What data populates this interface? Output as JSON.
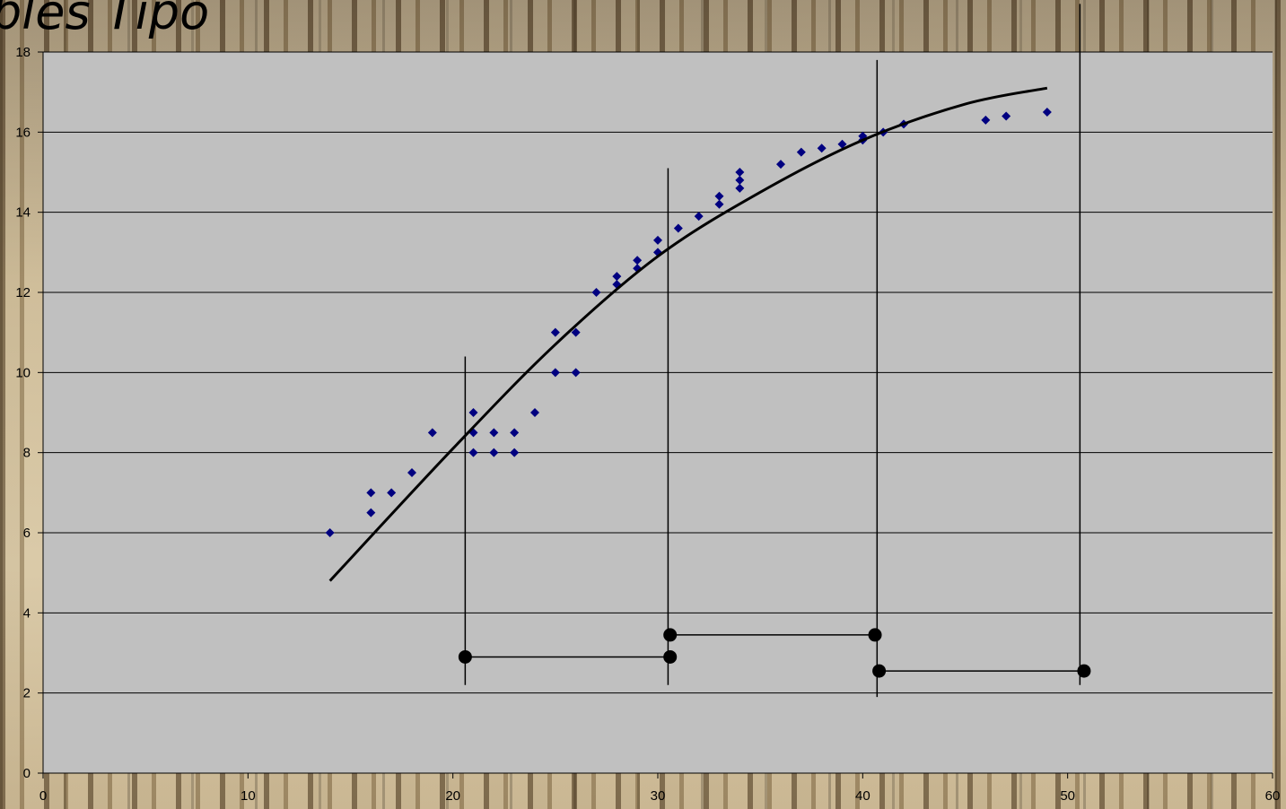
{
  "page": {
    "title": "bles Tipo"
  },
  "colors": {
    "plot_area": "#c0c0c0",
    "gridline": "#000000",
    "marker": "#000080",
    "trendline": "#000000",
    "interval": "#000000"
  },
  "chart_data": {
    "type": "scatter",
    "title": "",
    "xlabel": "",
    "ylabel": "",
    "xlim": [
      0,
      60
    ],
    "ylim": [
      0,
      18
    ],
    "x_ticks": [
      "0",
      "10",
      "20",
      "30",
      "40",
      "50",
      "60"
    ],
    "y_ticks": [
      "0",
      "2",
      "4",
      "6",
      "8",
      "10",
      "12",
      "14",
      "16",
      "18"
    ],
    "grid": "horizontal",
    "marker_shape": "diamond",
    "series": [
      {
        "points": [
          [
            14,
            6
          ],
          [
            16,
            7
          ],
          [
            16,
            6.5
          ],
          [
            17,
            7
          ],
          [
            18,
            7.5
          ],
          [
            19,
            8.5
          ],
          [
            21,
            9
          ],
          [
            21,
            8.5
          ],
          [
            21,
            8
          ],
          [
            22,
            8.5
          ],
          [
            22,
            8
          ],
          [
            23,
            8.5
          ],
          [
            23,
            8
          ],
          [
            24,
            9
          ],
          [
            25,
            11
          ],
          [
            25,
            10
          ],
          [
            26,
            11
          ],
          [
            26,
            10
          ],
          [
            27,
            12
          ],
          [
            28,
            12.4
          ],
          [
            28,
            12.2
          ],
          [
            29,
            12.8
          ],
          [
            29,
            12.6
          ],
          [
            30,
            13.3
          ],
          [
            30,
            13
          ],
          [
            31,
            13.6
          ],
          [
            32,
            13.9
          ],
          [
            33,
            14.4
          ],
          [
            33,
            14.2
          ],
          [
            34,
            15
          ],
          [
            34,
            14.8
          ],
          [
            34,
            14.6
          ],
          [
            36,
            15.2
          ],
          [
            37,
            15.5
          ],
          [
            38,
            15.6
          ],
          [
            39,
            15.7
          ],
          [
            40,
            15.9
          ],
          [
            40,
            15.8
          ],
          [
            41,
            16
          ],
          [
            42,
            16.2
          ],
          [
            46,
            16.3
          ],
          [
            47,
            16.4
          ],
          [
            49,
            16.5
          ]
        ]
      }
    ],
    "trendline": {
      "type": "polynomial",
      "x_range": [
        14,
        49
      ],
      "points": [
        [
          14,
          4.8
        ],
        [
          20,
          8.1
        ],
        [
          25,
          10.7
        ],
        [
          30,
          12.9
        ],
        [
          35,
          14.5
        ],
        [
          40,
          15.8
        ],
        [
          45,
          16.7
        ],
        [
          49,
          17.1
        ]
      ]
    },
    "class_limits": [
      {
        "x": 20.6,
        "y_from": 2.2,
        "y_to": 10.4
      },
      {
        "x": 30.5,
        "y_from": 2.2,
        "y_to": 15.1
      },
      {
        "x": 40.7,
        "y_from": 1.9,
        "y_to": 17.8
      },
      {
        "x": 50.6,
        "y_from": 2.2,
        "y_to": 19.2
      }
    ],
    "class_intervals": [
      {
        "x_from": 20.6,
        "x_to": 30.6,
        "y": 2.9
      },
      {
        "x_from": 30.6,
        "x_to": 40.6,
        "y": 3.45
      },
      {
        "x_from": 40.8,
        "x_to": 50.8,
        "y": 2.55
      }
    ]
  }
}
